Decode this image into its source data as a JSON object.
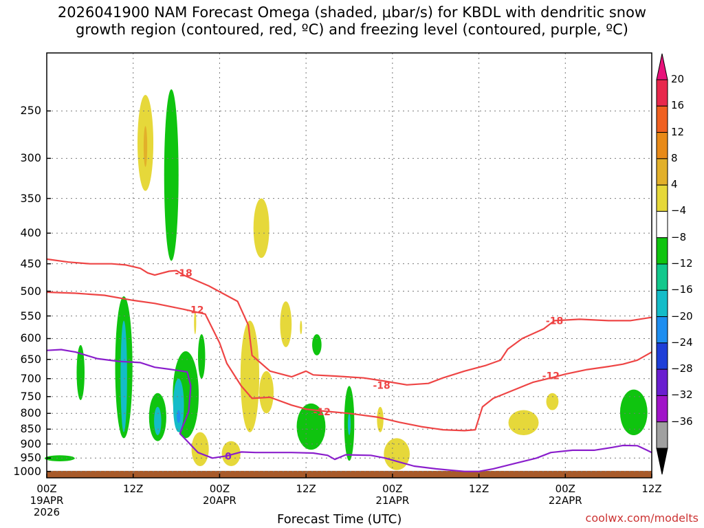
{
  "title_line1": "2026041900 NAM Forecast Omega (shaded, μbar/s) for KBDL with dendritic snow",
  "title_line2": "growth region (contoured, red, ºC) and freezing level (contoured, purple, ºC)",
  "credit": "coolwx.com/modelts",
  "chart_data": {
    "type": "heatmap",
    "title": "2026041900 NAM Forecast Omega (shaded, μbar/s) for KBDL with dendritic snow growth region (contoured, red, ºC) and freezing level (contoured, purple, ºC)",
    "xlabel": "Forecast Time (UTC)",
    "ylabel": "",
    "x_unit": "hours since 2026-04-19 00Z",
    "x_range": [
      0,
      84
    ],
    "y_scale": "log-pressure",
    "y_range_hPa": [
      1025,
      200
    ],
    "grid": true,
    "x_ticks": [
      {
        "h": 0,
        "lines": [
          "00Z",
          "19APR",
          "2026"
        ]
      },
      {
        "h": 12,
        "lines": [
          "12Z"
        ]
      },
      {
        "h": 24,
        "lines": [
          "00Z",
          "20APR"
        ]
      },
      {
        "h": 36,
        "lines": [
          "12Z"
        ]
      },
      {
        "h": 48,
        "lines": [
          "00Z",
          "21APR"
        ]
      },
      {
        "h": 60,
        "lines": [
          "12Z"
        ]
      },
      {
        "h": 72,
        "lines": [
          "00Z",
          "22APR"
        ]
      },
      {
        "h": 84,
        "lines": [
          "12Z"
        ]
      }
    ],
    "y_ticks": [
      "250",
      "300",
      "350",
      "400",
      "450",
      "500",
      "550",
      "600",
      "650",
      "700",
      "750",
      "800",
      "850",
      "900",
      "950",
      "1000"
    ],
    "y_tick_values": [
      250,
      300,
      350,
      400,
      450,
      500,
      550,
      600,
      650,
      700,
      750,
      800,
      850,
      900,
      950,
      1000
    ],
    "colorbar": {
      "labels": [
        "20",
        "16",
        "12",
        "8",
        "4",
        "−4",
        "−8",
        "−12",
        "−16",
        "−20",
        "−24",
        "−28",
        "−32",
        "−36"
      ],
      "colors": [
        "#e8284c",
        "#f06020",
        "#e88a18",
        "#e2b02a",
        "#e6d83a",
        "#ffffff",
        "#0fc40f",
        "#12c88c",
        "#14bcc8",
        "#1e8ef0",
        "#1e3ed8",
        "#6a1ed0",
        "#a014c8",
        "#a0a0a0"
      ],
      "top_cap_color": "#e8127a",
      "bottom_cap_color": "#000000"
    },
    "omega_regions": [
      {
        "h": 13.7,
        "p_top": 235,
        "p_bot": 340,
        "w": 2.2,
        "color": "#e6d83a"
      },
      {
        "h": 13.7,
        "p_top": 265,
        "p_bot": 310,
        "w": 0.5,
        "color": "#e2b02a"
      },
      {
        "h": 17.3,
        "p_top": 230,
        "p_bot": 445,
        "w": 2.0,
        "color": "#0fc40f"
      },
      {
        "h": 29.8,
        "p_top": 350,
        "p_bot": 440,
        "w": 2.2,
        "color": "#e6d83a"
      },
      {
        "h": 4.7,
        "p_top": 615,
        "p_bot": 760,
        "w": 1.1,
        "color": "#0fc40f"
      },
      {
        "h": 10.7,
        "p_top": 510,
        "p_bot": 880,
        "w": 2.4,
        "color": "#0fc40f"
      },
      {
        "h": 10.7,
        "p_top": 560,
        "p_bot": 860,
        "w": 0.9,
        "color": "#14bcc8"
      },
      {
        "h": 15.4,
        "p_top": 740,
        "p_bot": 890,
        "w": 2.4,
        "color": "#0fc40f"
      },
      {
        "h": 15.4,
        "p_top": 780,
        "p_bot": 870,
        "w": 1.0,
        "color": "#14bcc8"
      },
      {
        "h": 19.3,
        "p_top": 630,
        "p_bot": 880,
        "w": 3.6,
        "color": "#0fc40f"
      },
      {
        "h": 18.3,
        "p_top": 700,
        "p_bot": 860,
        "w": 1.5,
        "color": "#14bcc8"
      },
      {
        "h": 18.3,
        "p_top": 790,
        "p_bot": 830,
        "w": 0.5,
        "color": "#1e8ef0"
      },
      {
        "h": 21.5,
        "p_top": 590,
        "p_bot": 700,
        "w": 1.0,
        "color": "#0fc40f"
      },
      {
        "h": 20.6,
        "p_top": 540,
        "p_bot": 590,
        "w": 0.3,
        "color": "#e6d83a"
      },
      {
        "h": 21.3,
        "p_top": 860,
        "p_bot": 980,
        "w": 2.4,
        "color": "#e6d83a"
      },
      {
        "h": 25.6,
        "p_top": 890,
        "p_bot": 980,
        "w": 2.6,
        "color": "#e6d83a"
      },
      {
        "h": 28.2,
        "p_top": 560,
        "p_bot": 860,
        "w": 2.6,
        "color": "#e6d83a"
      },
      {
        "h": 30.5,
        "p_top": 680,
        "p_bot": 800,
        "w": 2.0,
        "color": "#e6d83a"
      },
      {
        "h": 33.2,
        "p_top": 520,
        "p_bot": 620,
        "w": 1.6,
        "color": "#e6d83a"
      },
      {
        "h": 35.3,
        "p_top": 560,
        "p_bot": 590,
        "w": 0.3,
        "color": "#e6d83a"
      },
      {
        "h": 36.7,
        "p_top": 770,
        "p_bot": 920,
        "w": 4.0,
        "color": "#0fc40f"
      },
      {
        "h": 37.5,
        "p_top": 590,
        "p_bot": 640,
        "w": 1.3,
        "color": "#0fc40f"
      },
      {
        "h": 42.0,
        "p_top": 720,
        "p_bot": 960,
        "w": 1.4,
        "color": "#0fc40f"
      },
      {
        "h": 42.0,
        "p_top": 800,
        "p_bot": 870,
        "w": 0.4,
        "color": "#14bcc8"
      },
      {
        "h": 46.3,
        "p_top": 780,
        "p_bot": 860,
        "w": 0.9,
        "color": "#e6d83a"
      },
      {
        "h": 48.6,
        "p_top": 880,
        "p_bot": 995,
        "w": 3.6,
        "color": "#e6d83a"
      },
      {
        "h": 66.2,
        "p_top": 790,
        "p_bot": 870,
        "w": 4.2,
        "color": "#e6d83a"
      },
      {
        "h": 70.2,
        "p_top": 740,
        "p_bot": 790,
        "w": 1.7,
        "color": "#e6d83a"
      },
      {
        "h": 81.5,
        "p_top": 730,
        "p_bot": 870,
        "w": 3.8,
        "color": "#0fc40f"
      },
      {
        "h": 1.8,
        "p_top": 940,
        "p_bot": 962,
        "w": 4.2,
        "color": "#0fc40f"
      }
    ],
    "dgz_minus18_label": "-18",
    "dgz_minus12_label": "-12",
    "freezing_label": "0",
    "isotherm_minus18": [
      [
        0,
        442
      ],
      [
        3,
        447
      ],
      [
        6,
        450
      ],
      [
        9,
        450
      ],
      [
        11,
        452
      ],
      [
        13,
        458
      ],
      [
        14,
        466
      ],
      [
        15,
        470
      ],
      [
        17,
        463
      ],
      [
        18,
        462
      ],
      [
        19,
        470
      ],
      [
        22.5,
        490
      ],
      [
        26.5,
        520
      ],
      [
        28,
        570
      ],
      [
        28.5,
        640
      ],
      [
        31,
        680
      ],
      [
        34,
        695
      ],
      [
        36,
        680
      ],
      [
        37,
        690
      ],
      [
        40,
        693
      ],
      [
        44,
        698
      ],
      [
        47,
        707
      ],
      [
        50,
        717
      ],
      [
        53,
        713
      ],
      [
        55,
        698
      ],
      [
        58,
        680
      ],
      [
        61,
        665
      ],
      [
        63,
        652
      ],
      [
        64,
        625
      ],
      [
        66,
        600
      ],
      [
        69,
        578
      ],
      [
        70.5,
        560
      ],
      [
        74,
        557
      ],
      [
        78,
        560
      ],
      [
        81,
        560
      ],
      [
        84,
        553
      ]
    ],
    "isotherm_minus12": [
      [
        0,
        502
      ],
      [
        4,
        504
      ],
      [
        8,
        508
      ],
      [
        12,
        518
      ],
      [
        15,
        524
      ],
      [
        17,
        530
      ],
      [
        19,
        536
      ],
      [
        22,
        546
      ],
      [
        24,
        610
      ],
      [
        25,
        660
      ],
      [
        27,
        720
      ],
      [
        28.5,
        755
      ],
      [
        31,
        752
      ],
      [
        34,
        775
      ],
      [
        36,
        787
      ],
      [
        38,
        792
      ],
      [
        42,
        800
      ],
      [
        46,
        812
      ],
      [
        49,
        828
      ],
      [
        52,
        842
      ],
      [
        55,
        852
      ],
      [
        58,
        855
      ],
      [
        59.5,
        852
      ],
      [
        60.5,
        780
      ],
      [
        62,
        755
      ],
      [
        65,
        730
      ],
      [
        67.5,
        710
      ],
      [
        70,
        698
      ],
      [
        72,
        688
      ],
      [
        75,
        676
      ],
      [
        78,
        668
      ],
      [
        80,
        662
      ],
      [
        82,
        652
      ],
      [
        84,
        632
      ]
    ],
    "freezing_level": [
      [
        0,
        628
      ],
      [
        2,
        626
      ],
      [
        4,
        632
      ],
      [
        7,
        648
      ],
      [
        10,
        655
      ],
      [
        13,
        658
      ],
      [
        15,
        670
      ],
      [
        17,
        675
      ],
      [
        19.5,
        682
      ],
      [
        20,
        720
      ],
      [
        19.7,
        795
      ],
      [
        18.8,
        845
      ],
      [
        18.5,
        865
      ],
      [
        19.5,
        890
      ],
      [
        21,
        930
      ],
      [
        23,
        950
      ],
      [
        25,
        942
      ],
      [
        27,
        928
      ],
      [
        29,
        930
      ],
      [
        31,
        930
      ],
      [
        34,
        930
      ],
      [
        37,
        932
      ],
      [
        39,
        940
      ],
      [
        40,
        955
      ],
      [
        41.5,
        938
      ],
      [
        45,
        940
      ],
      [
        47,
        950
      ],
      [
        49,
        965
      ],
      [
        51,
        980
      ],
      [
        54,
        990
      ],
      [
        56,
        995
      ],
      [
        58,
        1000
      ],
      [
        60,
        1000
      ],
      [
        62,
        990
      ],
      [
        65,
        970
      ],
      [
        68,
        950
      ],
      [
        70,
        930
      ],
      [
        73,
        922
      ],
      [
        76,
        922
      ],
      [
        78.5,
        912
      ],
      [
        80,
        905
      ],
      [
        82,
        906
      ],
      [
        83.2,
        920
      ],
      [
        84,
        930
      ]
    ]
  }
}
